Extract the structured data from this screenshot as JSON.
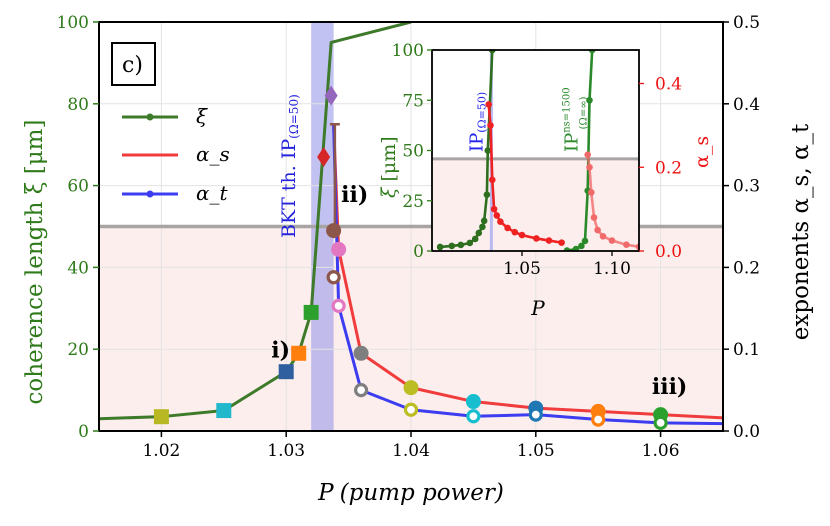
{
  "panel_label": "c)",
  "colors": {
    "xi": "#3d7a2a",
    "alpha_s": "#f03c3c",
    "alpha_t": "#3c3cf0",
    "band": "#9a9aea",
    "shade": "#fdeeee",
    "gray_line": "#a8a4a4",
    "left_axis": "#2f7a1a",
    "inset_right_axis": "#ee1111"
  },
  "chart_data": [
    {
      "type": "line",
      "name": "main",
      "title": "",
      "xlabel_main": "P",
      "xlabel_sub": "(pump power)",
      "ylabel_left": "coherence length ξ [μm]",
      "ylabel_right": "exponents α_s, α_t",
      "xlim": [
        1.015,
        1.065
      ],
      "ylim_left": [
        0,
        100
      ],
      "ylim_right": [
        0,
        0.5
      ],
      "x_ticks": [
        1.02,
        1.03,
        1.04,
        1.05,
        1.06
      ],
      "x_tick_labels": [
        "1.02",
        "1.03",
        "1.04",
        "1.05",
        "1.06"
      ],
      "y_left_ticks": [
        0,
        20,
        40,
        60,
        80,
        100
      ],
      "y_left_tick_labels": [
        "0",
        "20",
        "40",
        "60",
        "80",
        "100"
      ],
      "y_right_ticks": [
        0.0,
        0.1,
        0.2,
        0.3,
        0.4,
        0.5
      ],
      "y_right_tick_labels": [
        "0.0",
        "0.1",
        "0.2",
        "0.3",
        "0.4",
        "0.5"
      ],
      "grid": true,
      "legend": {
        "position": "top-left",
        "entries": [
          "ξ",
          "α_s",
          "α_t"
        ]
      },
      "bkt_band": {
        "x": [
          1.032,
          1.0338
        ],
        "label": "BKT th. IP",
        "label_sub": "(Ω=50)"
      },
      "threshold_line_right": 0.25,
      "series": [
        {
          "name": "ξ",
          "axis": "left",
          "x": [
            1.015,
            1.02,
            1.025,
            1.03,
            1.031,
            1.032,
            1.0336,
            1.04
          ],
          "y": [
            3,
            3.5,
            5,
            14.5,
            19,
            29,
            95,
            100
          ]
        },
        {
          "name": "α_s",
          "axis": "right",
          "x": [
            1.0338,
            1.0342,
            1.036,
            1.04,
            1.045,
            1.05,
            1.055,
            1.06,
            1.065
          ],
          "y": [
            0.374,
            0.222,
            0.095,
            0.053,
            0.036,
            0.028,
            0.024,
            0.02,
            0.016
          ]
        },
        {
          "name": "α_t",
          "axis": "right",
          "x": [
            1.0338,
            1.0342,
            1.036,
            1.04,
            1.045,
            1.05,
            1.055,
            1.06,
            1.065
          ],
          "y": [
            0.374,
            0.153,
            0.05,
            0.026,
            0.018,
            0.02,
            0.014,
            0.01,
            0.009
          ]
        }
      ],
      "square_markers": [
        {
          "x": 1.02,
          "y": 3.5,
          "color": "#b8b824"
        },
        {
          "x": 1.025,
          "y": 5,
          "color": "#22b8cc"
        },
        {
          "x": 1.03,
          "y": 14.5,
          "color": "#2f5f9e"
        },
        {
          "x": 1.031,
          "y": 19,
          "color": "#ff7f0e"
        },
        {
          "x": 1.032,
          "y": 29,
          "color": "#2ca02c"
        }
      ],
      "diamond_markers": [
        {
          "x": 1.033,
          "y": 67,
          "color": "#d62728"
        },
        {
          "x": 1.0336,
          "y": 82,
          "color": "#9467bd"
        }
      ],
      "errorbar": {
        "x": 1.0339,
        "y_top": 75,
        "y_bottom": 49,
        "color": "#8c564b"
      },
      "filled_circles": [
        {
          "x": 1.0338,
          "y": 0.245,
          "color": "#8c564b"
        },
        {
          "x": 1.0342,
          "y": 0.222,
          "color": "#e377c2"
        },
        {
          "x": 1.036,
          "y": 0.095,
          "color": "#7f7f7f"
        },
        {
          "x": 1.04,
          "y": 0.053,
          "color": "#bcbd22"
        },
        {
          "x": 1.045,
          "y": 0.036,
          "color": "#17becf"
        },
        {
          "x": 1.05,
          "y": 0.028,
          "color": "#1f77b4"
        },
        {
          "x": 1.055,
          "y": 0.024,
          "color": "#ff7f0e"
        },
        {
          "x": 1.06,
          "y": 0.02,
          "color": "#2ca02c"
        }
      ],
      "open_circles": [
        {
          "x": 1.0338,
          "y": 0.188,
          "color": "#8c564b"
        },
        {
          "x": 1.0342,
          "y": 0.153,
          "color": "#e377c2"
        },
        {
          "x": 1.036,
          "y": 0.05,
          "color": "#7f7f7f"
        },
        {
          "x": 1.04,
          "y": 0.026,
          "color": "#bcbd22"
        },
        {
          "x": 1.045,
          "y": 0.018,
          "color": "#17becf"
        },
        {
          "x": 1.05,
          "y": 0.02,
          "color": "#1f77b4"
        },
        {
          "x": 1.055,
          "y": 0.014,
          "color": "#ff7f0e"
        },
        {
          "x": 1.06,
          "y": 0.01,
          "color": "#2ca02c"
        }
      ],
      "annotations": [
        {
          "text": "i)",
          "x": 1.0288,
          "y": 18
        },
        {
          "text": "ii)",
          "x": 1.0344,
          "y": 56
        },
        {
          "text": "iii)",
          "x": 1.0593,
          "y": 9
        }
      ]
    },
    {
      "type": "line",
      "name": "inset",
      "xlabel": "P",
      "ylabel_left": "ξ [μm]",
      "ylabel_right": "α_s",
      "xlim": [
        1.0,
        1.115
      ],
      "ylim_left": [
        0,
        100
      ],
      "ylim_right": [
        0,
        0.48
      ],
      "x_ticks": [
        1.05,
        1.1
      ],
      "x_tick_labels": [
        "1.05",
        "1.10"
      ],
      "y_left_ticks": [
        0,
        25,
        50,
        75,
        100
      ],
      "y_left_tick_labels": [
        "0",
        "25",
        "50",
        "75",
        "100"
      ],
      "y_right_ticks": [
        0.0,
        0.2,
        0.4
      ],
      "y_right_tick_labels": [
        "0.0",
        "0.2",
        "0.4"
      ],
      "threshold_line_right": 0.22,
      "vertical_labels": [
        {
          "text": "IP",
          "sub": "(Ω=50)",
          "color": "#2222ee",
          "x": 1.033
        },
        {
          "text": "IP",
          "sup": "ns=1500",
          "sub": "(Ω=∞)",
          "color": "#2d8a2d",
          "x": 1.087
        }
      ],
      "series": [
        {
          "name": "ξ (Ω=50)",
          "axis": "left",
          "x": [
            1.0045,
            1.011,
            1.016,
            1.021,
            1.024,
            1.026,
            1.028,
            1.029,
            1.0305,
            1.031,
            1.0335
          ],
          "y": [
            2,
            2.5,
            3,
            4,
            6,
            9,
            12,
            15,
            28,
            50,
            100
          ]
        },
        {
          "name": "α_s (Ω=50)",
          "axis": "right",
          "x": [
            1.0315,
            1.0325,
            1.0335,
            1.0345,
            1.036,
            1.038,
            1.042,
            1.046,
            1.05,
            1.058,
            1.065,
            1.072
          ],
          "y": [
            0.35,
            0.3,
            0.17,
            0.1,
            0.085,
            0.07,
            0.055,
            0.045,
            0.038,
            0.03,
            0.025,
            0.02
          ]
        },
        {
          "name": "ξ (Ω=∞)",
          "axis": "left",
          "x": [
            1.075,
            1.08,
            1.083,
            1.085,
            1.0865,
            1.0875,
            1.089
          ],
          "y": [
            0.2,
            1,
            2.5,
            5,
            30,
            75,
            100
          ]
        },
        {
          "name": "α_s (Ω=∞)",
          "axis": "right",
          "x": [
            1.0865,
            1.0875,
            1.0885,
            1.09,
            1.092,
            1.095,
            1.1,
            1.108,
            1.115
          ],
          "y": [
            0.23,
            0.2,
            0.14,
            0.08,
            0.05,
            0.035,
            0.025,
            0.015,
            0.01
          ]
        }
      ]
    }
  ]
}
